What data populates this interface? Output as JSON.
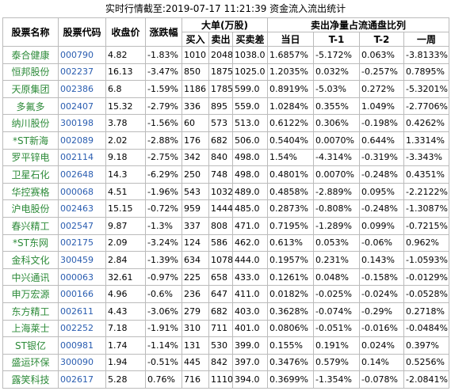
{
  "title": "实时行情截至:2019-07-17 11:21:39 资金流入流出统计",
  "table": {
    "header": [
      "股票名称",
      "股票代码",
      "收盘价",
      "涨跌幅",
      "大单(万股)",
      "卖出净量占流通盘比列"
    ],
    "subheader": [
      "买入",
      "卖出",
      "买卖差",
      "当日",
      "T-1",
      "T-2",
      "一周"
    ],
    "rows": [
      [
        "泰合健康",
        "000790",
        "4.82",
        "-1.83%",
        "1010",
        "2048",
        "1038.0",
        "1.6857%",
        "-5.172%",
        "0.063%",
        "-3.8133%"
      ],
      [
        "恒邦股份",
        "002237",
        "16.13",
        "-3.47%",
        "850",
        "1875",
        "1025.0",
        "1.2035%",
        "0.032%",
        "-0.257%",
        "0.7895%"
      ],
      [
        "天原集团",
        "002386",
        "6.8",
        "-1.59%",
        "1186",
        "1785",
        "599.0",
        "0.8919%",
        "-5.03%",
        "0.272%",
        "-5.3201%"
      ],
      [
        "多氟多",
        "002407",
        "15.32",
        "-2.79%",
        "336",
        "895",
        "559.0",
        "1.0284%",
        "0.355%",
        "1.049%",
        "-2.7706%"
      ],
      [
        "纳川股份",
        "300198",
        "3.78",
        "-1.56%",
        "60",
        "573",
        "513.0",
        "0.6122%",
        "0.306%",
        "-0.198%",
        "0.4262%"
      ],
      [
        "*ST新海",
        "002089",
        "2.02",
        "-2.88%",
        "176",
        "682",
        "506.0",
        "0.5404%",
        "0.0070%",
        "0.644%",
        "1.3314%"
      ],
      [
        "罗平锌电",
        "002114",
        "9.18",
        "-2.75%",
        "342",
        "840",
        "498.0",
        "1.54%",
        "-4.314%",
        "-0.319%",
        "-3.343%"
      ],
      [
        "卫星石化",
        "002648",
        "14.3",
        "-6.29%",
        "250",
        "748",
        "498.0",
        "0.4801%",
        "0.0070%",
        "-0.248%",
        "0.4351%"
      ],
      [
        "华控赛格",
        "000068",
        "4.51",
        "-1.96%",
        "543",
        "1032",
        "489.0",
        "0.4858%",
        "-2.889%",
        "0.095%",
        "-2.2122%"
      ],
      [
        "沪电股份",
        "002463",
        "15.15",
        "-0.72%",
        "959",
        "1444",
        "485.0",
        "0.2873%",
        "-0.808%",
        "-0.248%",
        "-1.3087%"
      ],
      [
        "春兴精工",
        "002547",
        "9.87",
        "-1.3%",
        "337",
        "808",
        "471.0",
        "0.7195%",
        "-1.289%",
        "0.099%",
        "-0.7215%"
      ],
      [
        "*ST东网",
        "002175",
        "2.09",
        "-3.24%",
        "124",
        "586",
        "462.0",
        "0.613%",
        "0.053%",
        "-0.06%",
        "0.962%"
      ],
      [
        "金科文化",
        "300459",
        "2.84",
        "-1.39%",
        "634",
        "1078",
        "444.0",
        "0.1957%",
        "0.231%",
        "0.143%",
        "-1.0593%"
      ],
      [
        "中兴通讯",
        "000063",
        "32.61",
        "-0.97%",
        "225",
        "658",
        "433.0",
        "0.1261%",
        "0.048%",
        "-0.158%",
        "-0.0129%"
      ],
      [
        "申万宏源",
        "000166",
        "4.96",
        "-0.6%",
        "236",
        "647",
        "411.0",
        "0.0182%",
        "-0.025%",
        "-0.024%",
        "-0.0528%"
      ],
      [
        "东方精工",
        "002611",
        "4.43",
        "-3.06%",
        "279",
        "682",
        "403.0",
        "0.3628%",
        "-0.074%",
        "-0.29%",
        "0.2718%"
      ],
      [
        "上海莱士",
        "002252",
        "7.18",
        "-1.91%",
        "310",
        "711",
        "401.0",
        "0.0806%",
        "-0.051%",
        "-0.016%",
        "-0.0484%"
      ],
      [
        "ST银亿",
        "000981",
        "1.74",
        "-1.14%",
        "131",
        "530",
        "399.0",
        "0.155%",
        "0.191%",
        "0.024%",
        "0.397%"
      ],
      [
        "盛运环保",
        "300090",
        "1.94",
        "-0.51%",
        "445",
        "842",
        "397.0",
        "0.3476%",
        "0.579%",
        "0.14%",
        "0.5256%"
      ],
      [
        "露笑科技",
        "002617",
        "5.28",
        "0.76%",
        "716",
        "1110",
        "394.0",
        "0.3699%",
        "-1.354%",
        "-0.078%",
        "-2.0841%"
      ]
    ]
  }
}
